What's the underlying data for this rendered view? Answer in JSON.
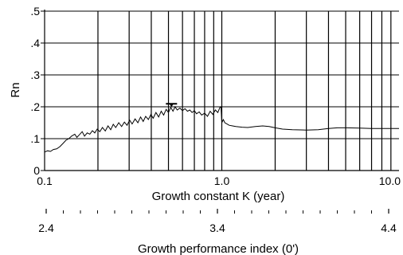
{
  "chart_data": {
    "type": "line",
    "x_scale": "log",
    "xlim": [
      0.1,
      10.0
    ],
    "ylim": [
      0,
      0.5
    ],
    "grid": true,
    "ylabel": "Rn",
    "xlabel": "Growth constant K (year)",
    "xlabel2": "Growth performance index (0')",
    "y_ticks": [
      {
        "value": 0.0,
        "label": "0"
      },
      {
        "value": 0.1,
        "label": ".1"
      },
      {
        "value": 0.2,
        "label": ".2"
      },
      {
        "value": 0.3,
        "label": ".3"
      },
      {
        "value": 0.4,
        "label": ".4"
      },
      {
        "value": 0.5,
        "label": ".5"
      }
    ],
    "x_ticks": [
      {
        "value": 0.1,
        "label": "0.1"
      },
      {
        "value": 1.0,
        "label": "1.0"
      },
      {
        "value": 10.0,
        "label": "10.0"
      }
    ],
    "x_grid": [
      0.2,
      0.3,
      0.4,
      0.5,
      0.6,
      0.7,
      0.8,
      0.9,
      1.0,
      2.0,
      3.0,
      4.0,
      5.0,
      6.0,
      7.0,
      8.0,
      9.0
    ],
    "secondary_axis": {
      "ticks": [
        {
          "value": 2.4,
          "label": "2.4"
        },
        {
          "value": 3.4,
          "label": "3.4"
        },
        {
          "value": 4.4,
          "label": "4.4"
        }
      ],
      "minor": [
        2.5,
        2.6,
        2.7,
        2.8,
        2.9,
        3.0,
        3.1,
        3.2,
        3.3,
        3.5,
        3.6,
        3.7,
        3.8,
        3.9,
        4.0,
        4.1,
        4.2,
        4.3
      ]
    },
    "marker": {
      "x": 0.52,
      "y": 0.212
    },
    "series": [
      {
        "points": [
          [
            0.1,
            0.058
          ],
          [
            0.104,
            0.062
          ],
          [
            0.108,
            0.06
          ],
          [
            0.112,
            0.066
          ],
          [
            0.117,
            0.068
          ],
          [
            0.122,
            0.075
          ],
          [
            0.127,
            0.085
          ],
          [
            0.132,
            0.095
          ],
          [
            0.137,
            0.1
          ],
          [
            0.142,
            0.108
          ],
          [
            0.148,
            0.114
          ],
          [
            0.152,
            0.104
          ],
          [
            0.157,
            0.112
          ],
          [
            0.163,
            0.122
          ],
          [
            0.168,
            0.108
          ],
          [
            0.174,
            0.118
          ],
          [
            0.18,
            0.114
          ],
          [
            0.186,
            0.125
          ],
          [
            0.192,
            0.118
          ],
          [
            0.198,
            0.13
          ],
          [
            0.205,
            0.122
          ],
          [
            0.212,
            0.135
          ],
          [
            0.22,
            0.124
          ],
          [
            0.228,
            0.14
          ],
          [
            0.236,
            0.128
          ],
          [
            0.244,
            0.145
          ],
          [
            0.252,
            0.135
          ],
          [
            0.262,
            0.15
          ],
          [
            0.272,
            0.138
          ],
          [
            0.282,
            0.152
          ],
          [
            0.292,
            0.142
          ],
          [
            0.302,
            0.158
          ],
          [
            0.312,
            0.146
          ],
          [
            0.324,
            0.162
          ],
          [
            0.336,
            0.15
          ],
          [
            0.348,
            0.168
          ],
          [
            0.36,
            0.154
          ],
          [
            0.372,
            0.17
          ],
          [
            0.385,
            0.16
          ],
          [
            0.398,
            0.176
          ],
          [
            0.41,
            0.164
          ],
          [
            0.425,
            0.182
          ],
          [
            0.44,
            0.168
          ],
          [
            0.455,
            0.186
          ],
          [
            0.47,
            0.174
          ],
          [
            0.485,
            0.192
          ],
          [
            0.5,
            0.182
          ],
          [
            0.515,
            0.198
          ],
          [
            0.53,
            0.186
          ],
          [
            0.545,
            0.2
          ],
          [
            0.56,
            0.19
          ],
          [
            0.58,
            0.196
          ],
          [
            0.6,
            0.188
          ],
          [
            0.62,
            0.194
          ],
          [
            0.64,
            0.186
          ],
          [
            0.66,
            0.19
          ],
          [
            0.68,
            0.182
          ],
          [
            0.7,
            0.188
          ],
          [
            0.72,
            0.178
          ],
          [
            0.745,
            0.184
          ],
          [
            0.77,
            0.174
          ],
          [
            0.8,
            0.18
          ],
          [
            0.83,
            0.17
          ],
          [
            0.86,
            0.186
          ],
          [
            0.89,
            0.176
          ],
          [
            0.92,
            0.19
          ],
          [
            0.95,
            0.182
          ],
          [
            0.975,
            0.198
          ],
          [
            0.99,
            0.2
          ],
          [
            1.0,
            0.15
          ],
          [
            1.02,
            0.16
          ],
          [
            1.04,
            0.15
          ],
          [
            1.07,
            0.146
          ],
          [
            1.1,
            0.142
          ],
          [
            1.15,
            0.14
          ],
          [
            1.2,
            0.138
          ],
          [
            1.3,
            0.136
          ],
          [
            1.4,
            0.135
          ],
          [
            1.55,
            0.138
          ],
          [
            1.7,
            0.14
          ],
          [
            1.85,
            0.138
          ],
          [
            2.0,
            0.134
          ],
          [
            2.2,
            0.13
          ],
          [
            2.5,
            0.128
          ],
          [
            3.0,
            0.127
          ],
          [
            3.5,
            0.128
          ],
          [
            4.0,
            0.132
          ],
          [
            4.5,
            0.134
          ],
          [
            5.0,
            0.134
          ],
          [
            6.0,
            0.133
          ],
          [
            7.0,
            0.132
          ],
          [
            8.0,
            0.132
          ],
          [
            10.0,
            0.132
          ]
        ]
      }
    ]
  }
}
